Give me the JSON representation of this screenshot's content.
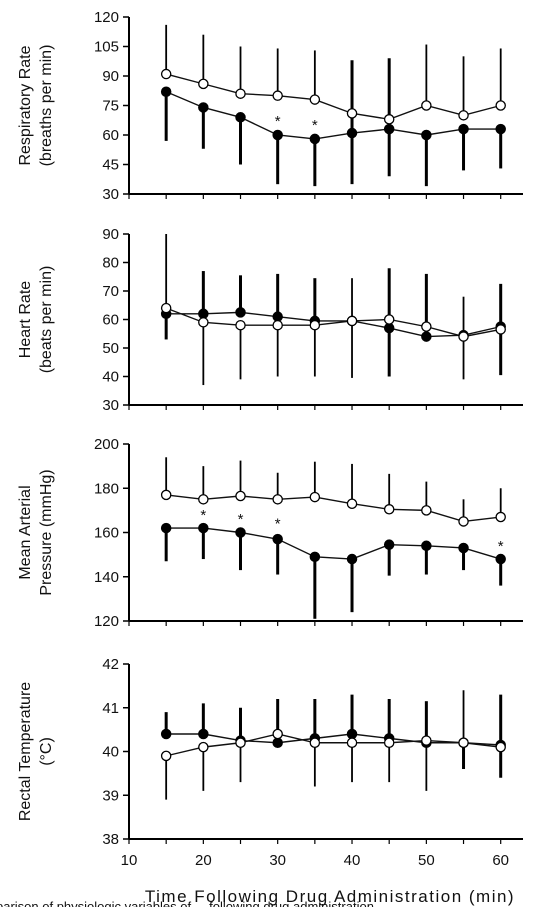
{
  "chart_data": [
    {
      "type": "line",
      "ylabel": [
        "Respiratory Rate",
        "(breaths per min)"
      ],
      "ylim": [
        30,
        120
      ],
      "yticks": [
        30,
        45,
        60,
        75,
        90,
        105,
        120
      ],
      "x": [
        15,
        20,
        25,
        30,
        35,
        40,
        45,
        50,
        55,
        60
      ],
      "series": [
        {
          "marker": "open",
          "values": [
            91,
            86,
            81,
            80,
            78,
            71,
            68,
            75,
            70,
            75
          ],
          "error_up": [
            25,
            25,
            24,
            24,
            25,
            0,
            0,
            31,
            30,
            29
          ],
          "error_down": [
            0,
            0,
            0,
            0,
            0,
            0,
            0,
            0,
            0,
            0
          ]
        },
        {
          "marker": "filled",
          "values": [
            82,
            74,
            69,
            60,
            58,
            61,
            63,
            60,
            63,
            63
          ],
          "error_up": [
            0,
            0,
            0,
            0,
            0,
            37,
            36,
            0,
            0,
            0
          ],
          "error_down": [
            25,
            21,
            24,
            25,
            24,
            26,
            24,
            26,
            21,
            20
          ]
        }
      ],
      "significance_markers": [
        {
          "x": 30,
          "y": 67,
          "label": "*"
        },
        {
          "x": 35,
          "y": 65,
          "label": "*"
        }
      ]
    },
    {
      "type": "line",
      "ylabel": [
        "Heart Rate",
        "(beats per min)"
      ],
      "ylim": [
        30,
        90
      ],
      "yticks": [
        30,
        40,
        50,
        60,
        70,
        80,
        90
      ],
      "x": [
        15,
        20,
        25,
        30,
        35,
        40,
        45,
        50,
        55,
        60
      ],
      "series": [
        {
          "marker": "open",
          "values": [
            64,
            59,
            58,
            58,
            58,
            59.5,
            60,
            57.5,
            54,
            56.5
          ],
          "error_up": [
            26,
            0,
            0,
            0,
            0,
            15,
            0,
            0,
            14,
            0
          ],
          "error_down": [
            0,
            22,
            19,
            18,
            18,
            20,
            0,
            0,
            15,
            0
          ]
        },
        {
          "marker": "filled",
          "values": [
            62,
            62,
            62.5,
            61,
            59.5,
            59.5,
            57,
            54,
            54.5,
            57.5
          ],
          "error_up": [
            0,
            15,
            13,
            15,
            15,
            0,
            21,
            22,
            0,
            15
          ],
          "error_down": [
            9,
            0,
            0,
            0,
            0,
            0,
            17,
            0,
            0,
            17
          ]
        }
      ],
      "significance_markers": []
    },
    {
      "type": "line",
      "ylabel": [
        "Mean Arterial",
        "Pressure (mmHg)"
      ],
      "ylim": [
        120,
        200
      ],
      "yticks": [
        120,
        140,
        160,
        180,
        200
      ],
      "x": [
        15,
        20,
        25,
        30,
        35,
        40,
        45,
        50,
        55,
        60
      ],
      "series": [
        {
          "marker": "open",
          "values": [
            177,
            175,
            176.5,
            175,
            176,
            173,
            170.5,
            170,
            165,
            167
          ],
          "error_up": [
            17,
            15,
            16,
            12,
            16,
            18,
            16,
            13,
            10,
            13
          ],
          "error_down": [
            0,
            0,
            0,
            0,
            0,
            0,
            0,
            0,
            0,
            0
          ]
        },
        {
          "marker": "filled",
          "values": [
            162,
            162,
            160,
            157,
            149,
            148,
            154.5,
            154,
            153,
            148
          ],
          "error_up": [
            0,
            0,
            0,
            0,
            0,
            0,
            0,
            0,
            0,
            0
          ],
          "error_down": [
            15,
            14,
            17,
            16,
            28,
            24,
            14,
            13,
            10,
            12
          ]
        }
      ],
      "significance_markers": [
        {
          "x": 20,
          "y": 168,
          "label": "*"
        },
        {
          "x": 25,
          "y": 166,
          "label": "*"
        },
        {
          "x": 30,
          "y": 164,
          "label": "*"
        },
        {
          "x": 60,
          "y": 154,
          "label": "*"
        }
      ]
    },
    {
      "type": "line",
      "ylabel": [
        "Rectal Temperature",
        "(°C)"
      ],
      "ylim": [
        38,
        42
      ],
      "yticks": [
        38,
        39,
        40,
        41,
        42
      ],
      "xlabel": "Time Following Drug Administration (min)",
      "xticks": [
        10,
        20,
        30,
        40,
        50,
        60
      ],
      "x": [
        15,
        20,
        25,
        30,
        35,
        40,
        45,
        50,
        55,
        60
      ],
      "series": [
        {
          "marker": "open",
          "values": [
            39.9,
            40.1,
            40.2,
            40.4,
            40.2,
            40.2,
            40.2,
            40.25,
            40.2,
            40.1
          ],
          "error_up": [
            0,
            0,
            0,
            0,
            0,
            0,
            0,
            0,
            1.2,
            0
          ],
          "error_down": [
            1,
            1,
            0.9,
            0,
            1,
            0.9,
            0.9,
            1.15,
            0,
            0
          ]
        },
        {
          "marker": "filled",
          "values": [
            40.4,
            40.4,
            40.25,
            40.2,
            40.3,
            40.4,
            40.3,
            40.2,
            40.2,
            40.15
          ],
          "error_up": [
            0.5,
            0.7,
            0.75,
            1,
            0.9,
            0.9,
            0.9,
            0.95,
            0,
            1.15
          ],
          "error_down": [
            0,
            0,
            0,
            0,
            0,
            0,
            0,
            0,
            0.6,
            0.75
          ]
        }
      ],
      "significance_markers": []
    }
  ],
  "caption_fragment": "parison of physiologic variables of ... following drug administration ..."
}
